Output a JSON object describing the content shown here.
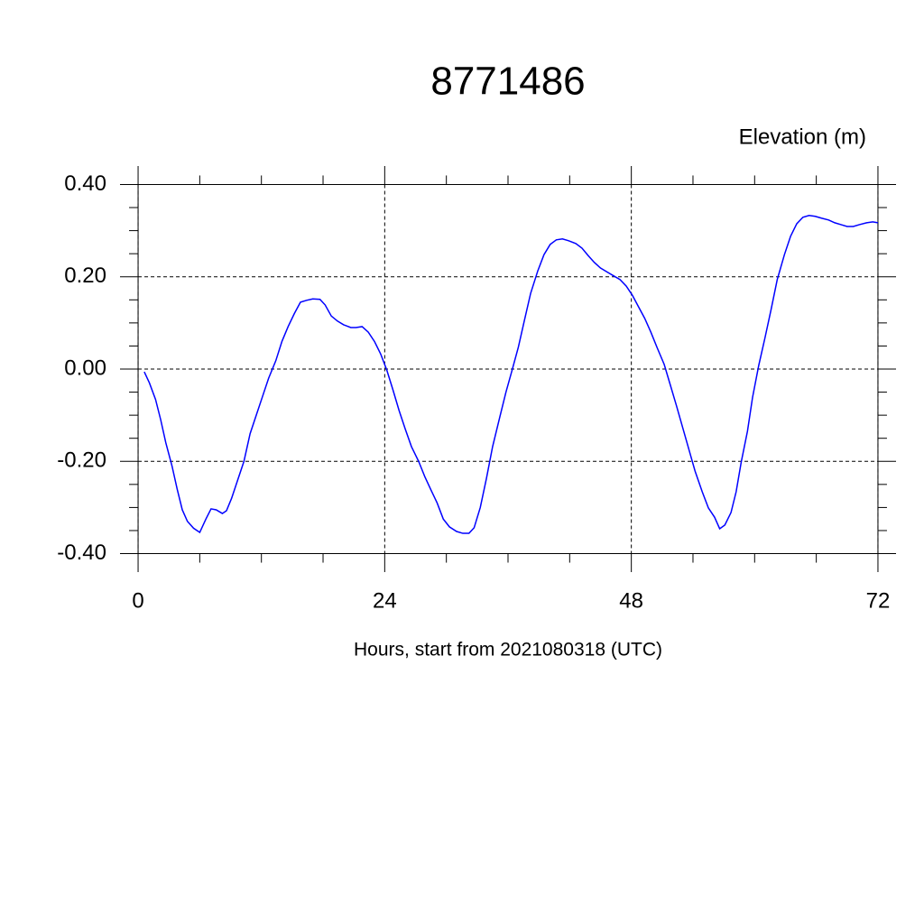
{
  "chart_data": {
    "type": "line",
    "title": "8771486",
    "y_label": "Elevation (m)",
    "x_label": "Hours, start from 2021080318 (UTC)",
    "xlim": [
      -1.76,
      73.76
    ],
    "ylim": [
      -0.44,
      0.44
    ],
    "xticks": [
      0,
      24,
      48,
      72
    ],
    "yticks": [
      {
        "value": 0.4,
        "label": "0.40"
      },
      {
        "value": 0.2,
        "label": "0.20"
      },
      {
        "value": 0,
        "label": "0.00"
      },
      {
        "value": -0.2,
        "label": "-0.20"
      },
      {
        "value": -0.4,
        "label": "-0.40"
      }
    ],
    "grid": true,
    "series": [
      {
        "color": "#0000ff",
        "x": [
          0.6,
          1.1,
          1.7,
          2.2,
          2.7,
          3.3,
          3.8,
          4.3,
          4.8,
          5.4,
          6.0,
          6.6,
          7.1,
          7.6,
          8.2,
          8.6,
          9.1,
          9.7,
          10.3,
          10.9,
          11.5,
          12.1,
          12.7,
          13.4,
          14.0,
          14.6,
          15.2,
          15.8,
          16.4,
          17.0,
          17.7,
          18.2,
          18.8,
          19.4,
          20.0,
          20.7,
          21.2,
          21.8,
          22.4,
          23.0,
          23.6,
          24.2,
          24.8,
          25.4,
          26.0,
          26.6,
          27.3,
          27.9,
          28.5,
          29.1,
          29.7,
          30.3,
          31.0,
          31.6,
          32.2,
          32.7,
          33.3,
          33.9,
          34.5,
          35.2,
          35.8,
          36.4,
          37.0,
          37.6,
          38.2,
          38.9,
          39.5,
          40.1,
          40.7,
          41.3,
          41.9,
          42.6,
          43.2,
          43.8,
          44.4,
          45.0,
          45.6,
          46.2,
          46.9,
          47.5,
          48.1,
          48.7,
          49.3,
          49.9,
          50.5,
          51.2,
          51.8,
          52.4,
          53.0,
          53.6,
          54.2,
          54.9,
          55.5,
          56.1,
          56.6,
          57.1,
          57.7,
          58.2,
          58.7,
          59.3,
          59.8,
          60.4,
          61.0,
          61.6,
          62.2,
          62.9,
          63.5,
          64.1,
          64.7,
          65.3,
          65.9,
          66.5,
          67.2,
          67.8,
          68.4,
          69.0,
          69.6,
          70.2,
          70.9,
          71.5,
          72.0
        ],
        "values": [
          -0.006,
          -0.03,
          -0.066,
          -0.11,
          -0.16,
          -0.21,
          -0.26,
          -0.305,
          -0.33,
          -0.345,
          -0.354,
          -0.325,
          -0.303,
          -0.305,
          -0.313,
          -0.307,
          -0.28,
          -0.24,
          -0.2,
          -0.14,
          -0.1,
          -0.06,
          -0.02,
          0.018,
          0.06,
          0.092,
          0.12,
          0.145,
          0.149,
          0.152,
          0.151,
          0.139,
          0.115,
          0.104,
          0.096,
          0.09,
          0.09,
          0.092,
          0.08,
          0.06,
          0.033,
          -0.002,
          -0.045,
          -0.09,
          -0.13,
          -0.168,
          -0.2,
          -0.233,
          -0.262,
          -0.29,
          -0.325,
          -0.342,
          -0.352,
          -0.356,
          -0.356,
          -0.344,
          -0.3,
          -0.237,
          -0.168,
          -0.104,
          -0.05,
          -0.002,
          0.047,
          0.106,
          0.164,
          0.213,
          0.248,
          0.27,
          0.28,
          0.282,
          0.278,
          0.272,
          0.262,
          0.246,
          0.231,
          0.219,
          0.211,
          0.203,
          0.194,
          0.18,
          0.16,
          0.135,
          0.11,
          0.08,
          0.047,
          0.01,
          -0.035,
          -0.08,
          -0.127,
          -0.174,
          -0.221,
          -0.266,
          -0.301,
          -0.321,
          -0.346,
          -0.338,
          -0.311,
          -0.266,
          -0.201,
          -0.135,
          -0.061,
          0.008,
          0.067,
          0.129,
          0.194,
          0.248,
          0.288,
          0.315,
          0.329,
          0.333,
          0.331,
          0.327,
          0.323,
          0.317,
          0.313,
          0.309,
          0.309,
          0.313,
          0.317,
          0.319,
          0.317
        ]
      }
    ]
  }
}
